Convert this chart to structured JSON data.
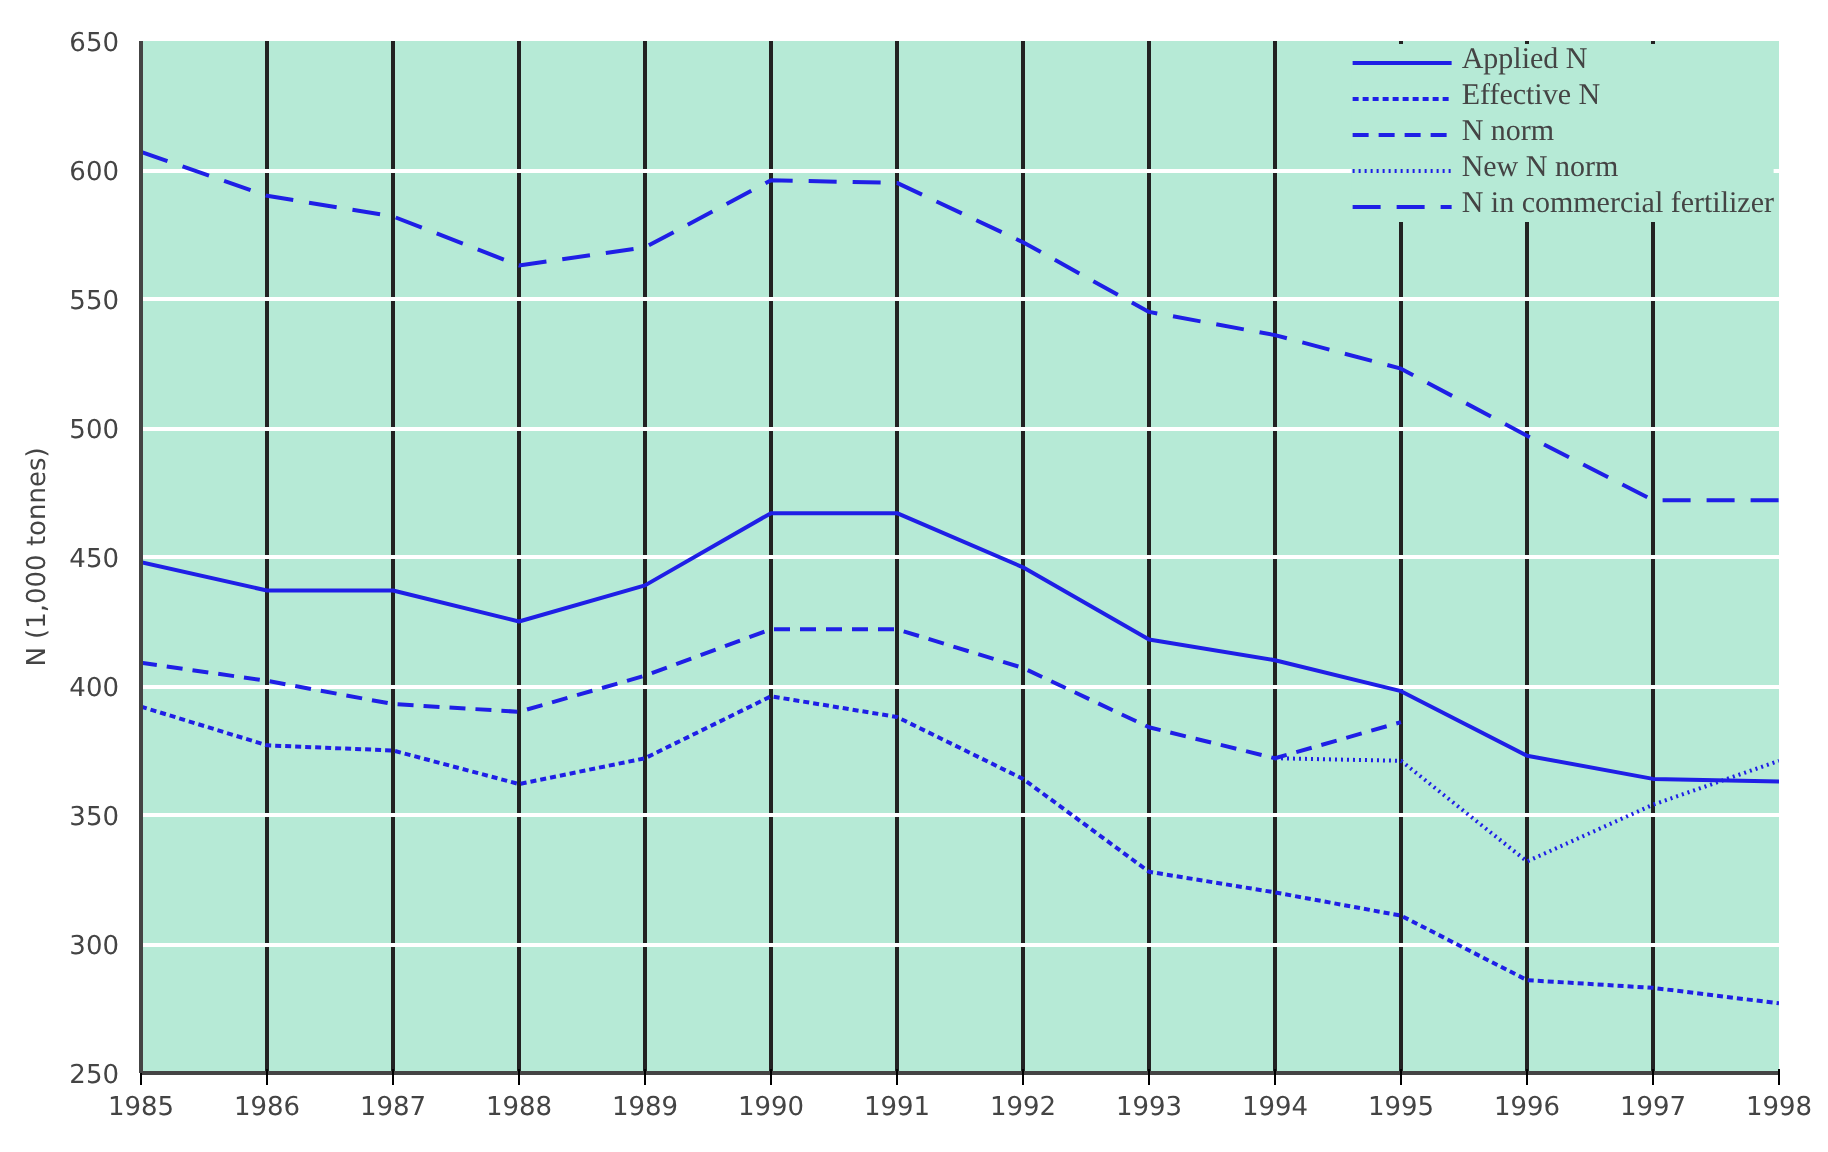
{
  "chart_data": {
    "type": "line",
    "ylabel": "N (1,000 tonnes)",
    "xlim": [
      1985,
      1998
    ],
    "xticks": [
      1985,
      1986,
      1987,
      1988,
      1989,
      1990,
      1991,
      1992,
      1993,
      1994,
      1995,
      1996,
      1997,
      1998
    ],
    "ylim": [
      250,
      650
    ],
    "yticks": [
      250,
      300,
      350,
      400,
      450,
      500,
      550,
      600,
      650
    ],
    "grid": true,
    "legend": "top right",
    "marker": "none",
    "x": [
      1985,
      1986,
      1987,
      1988,
      1989,
      1990,
      1991,
      1992,
      1993,
      1994,
      1995,
      1996,
      1997,
      1998
    ],
    "series": [
      {
        "name": "Applied N",
        "color": "#1f1fe6",
        "line_style": "solid",
        "values": [
          448,
          437,
          437,
          425,
          439,
          467,
          467,
          446,
          418,
          410,
          398,
          373,
          364,
          363
        ]
      },
      {
        "name": "Effective N",
        "color": "#1f1fe6",
        "line_style": "dashed",
        "values": [
          392,
          377,
          375,
          362,
          372,
          396,
          388,
          364,
          328,
          320,
          311,
          286,
          283,
          277
        ]
      },
      {
        "name": "N norm",
        "color": "#1f1fe6",
        "line_style": "dashed",
        "values": [
          409,
          402,
          393,
          390,
          404,
          422,
          422,
          407,
          384,
          372,
          386,
          null,
          null,
          null
        ]
      },
      {
        "name": "New N norm",
        "color": "#1f1fe6",
        "line_style": "dotted",
        "x": [
          1994,
          1995,
          1996,
          1997,
          1998
        ],
        "values": [
          372,
          371,
          332,
          354,
          371
        ]
      },
      {
        "name": "N in commercial fertilizer",
        "color": "#1f1fe6",
        "line_style": "dashed",
        "values": [
          607,
          590,
          582,
          563,
          570,
          596,
          595,
          572,
          545,
          536,
          523,
          497,
          472,
          472
        ]
      }
    ]
  }
}
